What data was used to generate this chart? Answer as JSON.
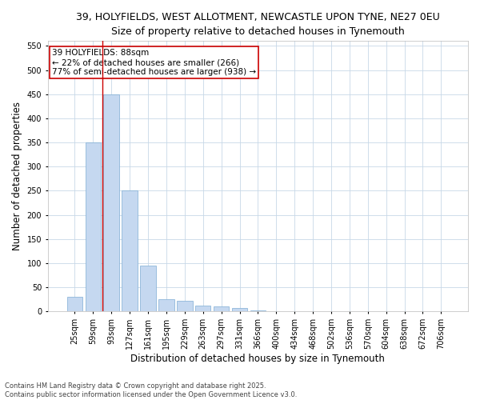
{
  "title_line1": "39, HOLYFIELDS, WEST ALLOTMENT, NEWCASTLE UPON TYNE, NE27 0EU",
  "title_line2": "Size of property relative to detached houses in Tynemouth",
  "xlabel": "Distribution of detached houses by size in Tynemouth",
  "ylabel": "Number of detached properties",
  "categories": [
    "25sqm",
    "59sqm",
    "93sqm",
    "127sqm",
    "161sqm",
    "195sqm",
    "229sqm",
    "263sqm",
    "297sqm",
    "331sqm",
    "366sqm",
    "400sqm",
    "434sqm",
    "468sqm",
    "502sqm",
    "536sqm",
    "570sqm",
    "604sqm",
    "638sqm",
    "672sqm",
    "706sqm"
  ],
  "values": [
    30,
    350,
    450,
    250,
    95,
    25,
    22,
    13,
    10,
    7,
    3,
    1,
    0,
    0,
    0,
    0,
    0,
    0,
    0,
    0,
    1
  ],
  "bar_color": "#c5d8f0",
  "bar_edge_color": "#7eadd4",
  "vline_x_index": 1.5,
  "vline_color": "#cc0000",
  "annotation_text": "39 HOLYFIELDS: 88sqm\n← 22% of detached houses are smaller (266)\n77% of semi-detached houses are larger (938) →",
  "annotation_box_color": "#ffffff",
  "annotation_box_edge": "#cc0000",
  "ylim": [
    0,
    560
  ],
  "yticks": [
    0,
    50,
    100,
    150,
    200,
    250,
    300,
    350,
    400,
    450,
    500,
    550
  ],
  "background_color": "#ffffff",
  "grid_color": "#c8d8e8",
  "footer": "Contains HM Land Registry data © Crown copyright and database right 2025.\nContains public sector information licensed under the Open Government Licence v3.0.",
  "title_fontsize": 9,
  "subtitle_fontsize": 9,
  "axis_label_fontsize": 8.5,
  "tick_fontsize": 7,
  "annotation_fontsize": 7.5,
  "footer_fontsize": 6
}
